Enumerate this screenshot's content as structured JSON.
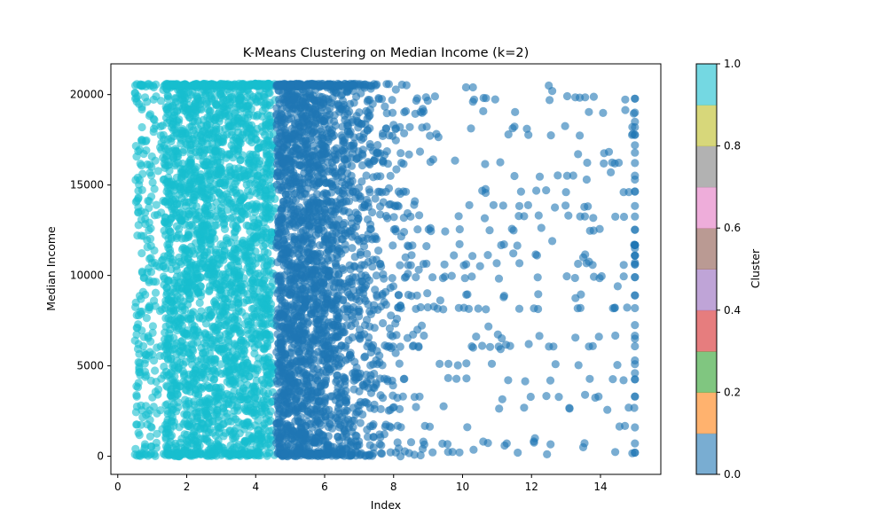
{
  "chart_data": {
    "type": "scatter",
    "title": "K-Means Clustering on Median Income (k=2)",
    "xlabel": "Index",
    "ylabel": "Median Income",
    "xlim": [
      -0.2,
      15.75
    ],
    "ylim": [
      -1000,
      21700
    ],
    "xticks": [
      0,
      2,
      4,
      6,
      8,
      10,
      12,
      14
    ],
    "yticks": [
      0,
      5000,
      10000,
      15000,
      20000
    ],
    "grid": false,
    "colorbar": {
      "label": "Cluster",
      "min": 0.0,
      "max": 1.0,
      "ticks": [
        "0.0",
        "0.2",
        "0.4",
        "0.6",
        "0.8",
        "1.0"
      ],
      "colormap_colors": [
        "#1f77b4",
        "#ff7f0e",
        "#2ca02c",
        "#d62728",
        "#9467bd",
        "#8c564b",
        "#e377c2",
        "#7f7f7f",
        "#bcbd22",
        "#17becf"
      ]
    },
    "clusters": [
      {
        "cluster": 1,
        "color": "#17becf",
        "x_range": [
          0.5,
          4.6
        ],
        "y_range": [
          0,
          20600
        ],
        "dense_x_range": [
          1.5,
          4.6
        ],
        "sample_points": [
          {
            "x": 0.5,
            "y": 20100
          },
          {
            "x": 0.55,
            "y": 19600
          },
          {
            "x": 0.6,
            "y": 14300
          },
          {
            "x": 0.55,
            "y": 7100
          },
          {
            "x": 0.5,
            "y": 6400
          },
          {
            "x": 0.6,
            "y": 5200
          },
          {
            "x": 0.55,
            "y": 3300
          },
          {
            "x": 0.6,
            "y": 1300
          },
          {
            "x": 0.5,
            "y": 100
          },
          {
            "x": 0.7,
            "y": 17500
          },
          {
            "x": 0.7,
            "y": 8000
          },
          {
            "x": 0.9,
            "y": 12500
          }
        ]
      },
      {
        "cluster": 0,
        "color": "#1f77b4",
        "x_range": [
          4.6,
          15.0
        ],
        "y_range": [
          0,
          20600
        ],
        "dense_x_range": [
          4.6,
          8.0
        ],
        "sample_points": [
          {
            "x": 9.2,
            "y": 19900
          },
          {
            "x": 10.1,
            "y": 20400
          },
          {
            "x": 10.3,
            "y": 20400
          },
          {
            "x": 12.5,
            "y": 20500
          },
          {
            "x": 12.6,
            "y": 20200
          },
          {
            "x": 15.0,
            "y": 18500
          },
          {
            "x": 15.0,
            "y": 17200
          },
          {
            "x": 15.0,
            "y": 15300
          },
          {
            "x": 15.0,
            "y": 11500
          },
          {
            "x": 15.0,
            "y": 10700
          },
          {
            "x": 15.0,
            "y": 8900
          },
          {
            "x": 15.0,
            "y": 6500
          },
          {
            "x": 15.0,
            "y": 5300
          },
          {
            "x": 15.0,
            "y": 4600
          },
          {
            "x": 15.0,
            "y": 1600
          },
          {
            "x": 13.6,
            "y": 15300
          },
          {
            "x": 14.3,
            "y": 15700
          },
          {
            "x": 13.5,
            "y": 11000
          },
          {
            "x": 14.5,
            "y": 9400
          },
          {
            "x": 12.6,
            "y": 11900
          },
          {
            "x": 11.6,
            "y": 200
          },
          {
            "x": 12.1,
            "y": 1000
          },
          {
            "x": 13.5,
            "y": 500
          },
          {
            "x": 8.2,
            "y": 0
          }
        ]
      }
    ]
  }
}
